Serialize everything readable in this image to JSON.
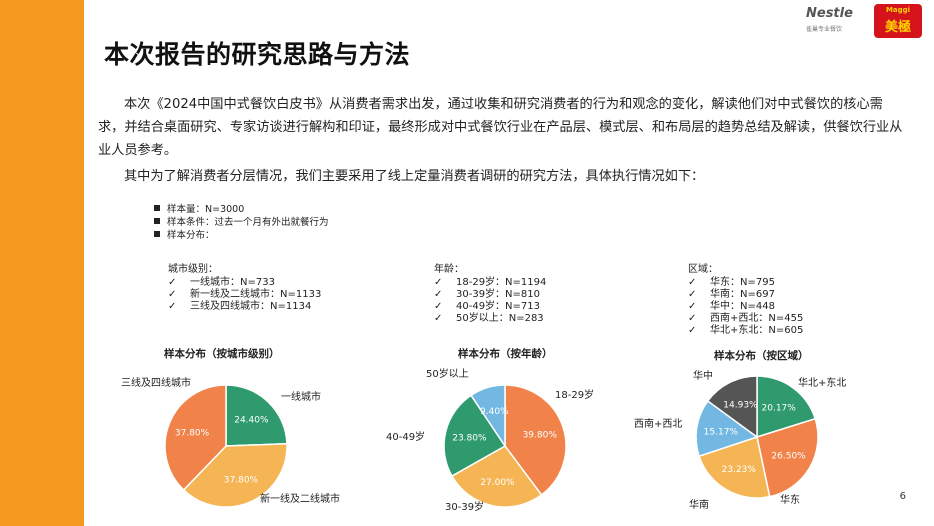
{
  "header": {
    "title": "本次报告的研究思路与方法",
    "logo_nestle": "Nestle",
    "logo_nestle_sub": "雀巢专业餐饮",
    "logo_maggi_top": "Maggi",
    "logo_maggi_main": "美極"
  },
  "paragraphs": {
    "p1": "本次《2024中国中式餐饮白皮书》从消费者需求出发，通过收集和研究消费者的行为和观念的变化，解读他们对中式餐饮的核心需求，并结合桌面研究、专家访谈进行解构和印证，最终形成对中式餐饮行业在产品层、模式层、和布局层的趋势总结及解读，供餐饮行业从业人员参考。",
    "p2": "其中为了解消费者分层情况，我们主要采用了线上定量消费者调研的研究方法，具体执行情况如下："
  },
  "bullets": [
    "样本量：N=3000",
    "样本条件：过去一个月有外出就餐行为",
    "样本分布："
  ],
  "groups": [
    {
      "heading": "城市级别：",
      "items": [
        "一线城市：N=733",
        "新一线及二线城市：N=1133",
        "三线及四线城市：N=1134"
      ]
    },
    {
      "heading": "年龄：",
      "items": [
        "18-29岁：N=1194",
        "30-39岁：N=810",
        "40-49岁：N=713",
        "50岁以上：N=283"
      ]
    },
    {
      "heading": "区域：",
      "items": [
        "华东：N=795",
        "华南：N=697",
        "华中：N=448",
        "西南+西北：N=455",
        "华北+东北：N=605"
      ]
    }
  ],
  "check_mark": "✓",
  "page_number": "6",
  "chart_data": [
    {
      "type": "pie",
      "title": "样本分布（按城市级别）",
      "slices": [
        {
          "label": "一线城市",
          "value": 24.4,
          "text": "24.40%",
          "color": "#2e9a6e"
        },
        {
          "label": "新一线及二线城市",
          "value": 37.8,
          "text": "37.80%",
          "color": "#f5b555"
        },
        {
          "label": "三线及四线城市",
          "value": 37.8,
          "text": "37.80%",
          "color": "#f0824a"
        }
      ]
    },
    {
      "type": "pie",
      "title": "样本分布（按年龄）",
      "slices": [
        {
          "label": "18-29岁",
          "value": 39.8,
          "text": "39.80%",
          "color": "#f0824a"
        },
        {
          "label": "30-39岁",
          "value": 27.0,
          "text": "27.00%",
          "color": "#f5b555"
        },
        {
          "label": "40-49岁",
          "value": 23.8,
          "text": "23.80%",
          "color": "#2e9a6e"
        },
        {
          "label": "50岁以上",
          "value": 9.4,
          "text": "9.40%",
          "color": "#72b8e3"
        }
      ]
    },
    {
      "type": "pie",
      "title": "样本分布（按区域）",
      "slices": [
        {
          "label": "华北+东北",
          "value": 20.17,
          "text": "20.17%",
          "color": "#2e9a6e"
        },
        {
          "label": "华东",
          "value": 26.5,
          "text": "26.50%",
          "color": "#f0824a"
        },
        {
          "label": "华南",
          "value": 23.23,
          "text": "23.23%",
          "color": "#f5b555"
        },
        {
          "label": "西南+西北",
          "value": 15.17,
          "text": "15.17%",
          "color": "#72b8e3"
        },
        {
          "label": "华中",
          "value": 14.93,
          "text": "14.93%",
          "color": "#555555"
        }
      ]
    }
  ]
}
